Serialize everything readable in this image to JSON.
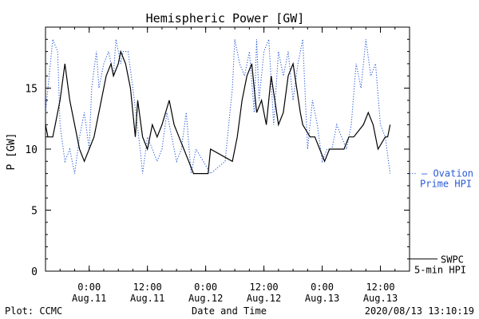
{
  "chart_data": {
    "type": "line",
    "title": "Hemispheric Power [GW]",
    "ylabel": "P [GW]",
    "xlabel": "Date and Time",
    "ylim": [
      0,
      20
    ],
    "y_ticks": [
      0,
      5,
      10,
      15
    ],
    "x_range": [
      "2020-08-10T15:00",
      "2020-08-13T18:00"
    ],
    "x_ticks": [
      {
        "t": "2020-08-11T00:00",
        "time": "0:00",
        "date": "Aug.11"
      },
      {
        "t": "2020-08-11T12:00",
        "time": "12:00",
        "date": "Aug.11"
      },
      {
        "t": "2020-08-12T00:00",
        "time": "0:00",
        "date": "Aug.12"
      },
      {
        "t": "2020-08-12T12:00",
        "time": "12:00",
        "date": "Aug.12"
      },
      {
        "t": "2020-08-13T00:00",
        "time": "0:00",
        "date": "Aug.13"
      },
      {
        "t": "2020-08-13T12:00",
        "time": "12:00",
        "date": "Aug.13"
      }
    ],
    "grid": false,
    "series": [
      {
        "name": "SWPC 5-min HPI",
        "legend_lines": [
          "SWPC",
          "5-min HPI"
        ],
        "color": "#000000",
        "style": "solid",
        "points": [
          [
            "2020-08-10T15:00",
            12
          ],
          [
            "2020-08-10T15:30",
            11
          ],
          [
            "2020-08-10T16:30",
            11
          ],
          [
            "2020-08-10T17:00",
            12
          ],
          [
            "2020-08-10T18:00",
            14
          ],
          [
            "2020-08-10T19:00",
            17
          ],
          [
            "2020-08-10T20:00",
            14
          ],
          [
            "2020-08-10T21:00",
            12
          ],
          [
            "2020-08-10T22:00",
            10
          ],
          [
            "2020-08-10T23:00",
            9
          ],
          [
            "2020-08-11T00:00",
            10
          ],
          [
            "2020-08-11T01:00",
            11
          ],
          [
            "2020-08-11T01:30",
            12
          ],
          [
            "2020-08-11T02:30",
            14
          ],
          [
            "2020-08-11T03:30",
            16
          ],
          [
            "2020-08-11T04:30",
            17
          ],
          [
            "2020-08-11T05:00",
            16
          ],
          [
            "2020-08-11T06:00",
            17
          ],
          [
            "2020-08-11T06:30",
            18
          ],
          [
            "2020-08-11T07:30",
            17
          ],
          [
            "2020-08-11T08:30",
            15
          ],
          [
            "2020-08-11T09:30",
            11
          ],
          [
            "2020-08-11T10:00",
            14
          ],
          [
            "2020-08-11T11:00",
            11
          ],
          [
            "2020-08-11T12:00",
            10
          ],
          [
            "2020-08-11T13:00",
            12
          ],
          [
            "2020-08-11T14:00",
            11
          ],
          [
            "2020-08-11T15:00",
            12
          ],
          [
            "2020-08-11T16:30",
            14
          ],
          [
            "2020-08-11T17:30",
            12
          ],
          [
            "2020-08-11T18:30",
            11
          ],
          [
            "2020-08-11T19:30",
            10
          ],
          [
            "2020-08-11T20:30",
            9
          ],
          [
            "2020-08-11T21:30",
            8
          ],
          [
            "2020-08-12T00:30",
            8
          ],
          [
            "2020-08-12T01:00",
            10
          ],
          [
            "2020-08-12T05:30",
            9
          ],
          [
            "2020-08-12T06:30",
            11
          ],
          [
            "2020-08-12T07:30",
            14
          ],
          [
            "2020-08-12T08:30",
            16
          ],
          [
            "2020-08-12T09:30",
            17
          ],
          [
            "2020-08-12T10:00",
            15
          ],
          [
            "2020-08-12T10:30",
            13
          ],
          [
            "2020-08-12T11:30",
            14
          ],
          [
            "2020-08-12T12:30",
            12
          ],
          [
            "2020-08-12T13:30",
            16
          ],
          [
            "2020-08-12T15:00",
            12
          ],
          [
            "2020-08-12T16:00",
            13
          ],
          [
            "2020-08-12T17:00",
            16
          ],
          [
            "2020-08-12T18:00",
            17
          ],
          [
            "2020-08-12T19:30",
            13
          ],
          [
            "2020-08-12T20:00",
            12
          ],
          [
            "2020-08-12T21:30",
            11
          ],
          [
            "2020-08-12T22:30",
            11
          ],
          [
            "2020-08-12T23:30",
            10
          ],
          [
            "2020-08-13T00:30",
            9
          ],
          [
            "2020-08-13T01:30",
            10
          ],
          [
            "2020-08-13T04:30",
            10
          ],
          [
            "2020-08-13T05:30",
            11
          ],
          [
            "2020-08-13T06:30",
            11
          ],
          [
            "2020-08-13T08:30",
            12
          ],
          [
            "2020-08-13T09:30",
            13
          ],
          [
            "2020-08-13T10:30",
            12
          ],
          [
            "2020-08-13T11:30",
            10
          ],
          [
            "2020-08-13T13:00",
            11
          ],
          [
            "2020-08-13T13:30",
            11
          ],
          [
            "2020-08-13T14:00",
            12
          ]
        ]
      },
      {
        "name": "Ovation Prime HPI",
        "legend_lines": [
          "— Ovation",
          "Prime HPI"
        ],
        "color": "#2a5bd7",
        "style": "dotted",
        "points": [
          [
            "2020-08-10T15:00",
            13
          ],
          [
            "2020-08-10T16:00",
            17
          ],
          [
            "2020-08-10T16:30",
            19
          ],
          [
            "2020-08-10T17:30",
            18
          ],
          [
            "2020-08-10T18:00",
            12
          ],
          [
            "2020-08-10T19:00",
            9
          ],
          [
            "2020-08-10T20:00",
            10
          ],
          [
            "2020-08-10T21:00",
            8
          ],
          [
            "2020-08-10T22:00",
            11
          ],
          [
            "2020-08-10T23:00",
            13
          ],
          [
            "2020-08-11T00:00",
            10
          ],
          [
            "2020-08-11T00:30",
            15
          ],
          [
            "2020-08-11T01:30",
            18
          ],
          [
            "2020-08-11T02:00",
            15
          ],
          [
            "2020-08-11T03:00",
            17
          ],
          [
            "2020-08-11T04:00",
            18
          ],
          [
            "2020-08-11T04:30",
            17
          ],
          [
            "2020-08-11T05:00",
            16
          ],
          [
            "2020-08-11T05:30",
            19
          ],
          [
            "2020-08-11T06:30",
            17
          ],
          [
            "2020-08-11T07:00",
            18
          ],
          [
            "2020-08-11T08:00",
            18
          ],
          [
            "2020-08-11T09:00",
            15
          ],
          [
            "2020-08-11T10:30",
            10
          ],
          [
            "2020-08-11T11:00",
            8
          ],
          [
            "2020-08-11T12:00",
            11
          ],
          [
            "2020-08-11T13:00",
            10
          ],
          [
            "2020-08-11T14:00",
            9
          ],
          [
            "2020-08-11T15:00",
            10
          ],
          [
            "2020-08-11T16:00",
            13
          ],
          [
            "2020-08-11T17:00",
            11
          ],
          [
            "2020-08-11T18:00",
            9
          ],
          [
            "2020-08-11T19:00",
            10
          ],
          [
            "2020-08-11T20:00",
            13
          ],
          [
            "2020-08-11T21:00",
            8
          ],
          [
            "2020-08-11T22:00",
            10
          ],
          [
            "2020-08-12T01:00",
            8
          ],
          [
            "2020-08-12T04:00",
            9
          ],
          [
            "2020-08-12T05:00",
            13
          ],
          [
            "2020-08-12T05:30",
            15
          ],
          [
            "2020-08-12T06:00",
            19
          ],
          [
            "2020-08-12T07:00",
            17
          ],
          [
            "2020-08-12T08:00",
            16
          ],
          [
            "2020-08-12T09:00",
            18
          ],
          [
            "2020-08-12T10:00",
            13
          ],
          [
            "2020-08-12T10:30",
            19
          ],
          [
            "2020-08-12T11:00",
            14
          ],
          [
            "2020-08-12T12:00",
            18
          ],
          [
            "2020-08-12T13:00",
            19
          ],
          [
            "2020-08-12T14:00",
            12
          ],
          [
            "2020-08-12T15:00",
            18
          ],
          [
            "2020-08-12T16:00",
            16
          ],
          [
            "2020-08-12T17:00",
            18
          ],
          [
            "2020-08-12T18:00",
            14
          ],
          [
            "2020-08-12T19:00",
            17
          ],
          [
            "2020-08-12T20:00",
            19
          ],
          [
            "2020-08-12T21:00",
            10
          ],
          [
            "2020-08-12T22:00",
            14
          ],
          [
            "2020-08-12T23:00",
            12
          ],
          [
            "2020-08-13T00:00",
            9
          ],
          [
            "2020-08-13T01:00",
            10
          ],
          [
            "2020-08-13T02:00",
            10
          ],
          [
            "2020-08-13T03:00",
            12
          ],
          [
            "2020-08-13T04:00",
            11
          ],
          [
            "2020-08-13T05:00",
            10
          ],
          [
            "2020-08-13T06:00",
            12
          ],
          [
            "2020-08-13T07:00",
            17
          ],
          [
            "2020-08-13T08:00",
            15
          ],
          [
            "2020-08-13T09:00",
            19
          ],
          [
            "2020-08-13T10:00",
            16
          ],
          [
            "2020-08-13T11:00",
            17
          ],
          [
            "2020-08-13T12:00",
            12
          ],
          [
            "2020-08-13T13:00",
            11
          ],
          [
            "2020-08-13T14:00",
            8
          ]
        ]
      }
    ]
  },
  "footer": {
    "left": "Plot: CCMC",
    "center": "Date and Time",
    "right": "2020/08/13 13:10:19"
  }
}
